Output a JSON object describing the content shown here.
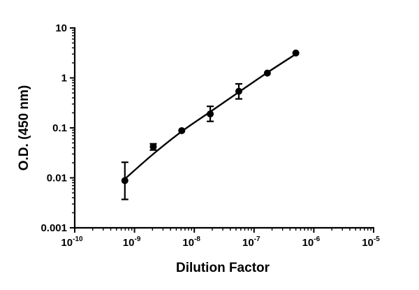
{
  "chart_data": {
    "type": "scatter",
    "xlabel": "Dilution Factor",
    "ylabel": "O.D. (450 nm)",
    "x_scale": "log",
    "y_scale": "log",
    "xlim": [
      1e-10,
      1e-05
    ],
    "ylim": [
      0.001,
      10
    ],
    "x_ticks": [
      {
        "base": "10",
        "exp": "-10"
      },
      {
        "base": "10",
        "exp": "-9"
      },
      {
        "base": "10",
        "exp": "-8"
      },
      {
        "base": "10",
        "exp": "-7"
      },
      {
        "base": "10",
        "exp": "-6"
      },
      {
        "base": "10",
        "exp": "-5"
      }
    ],
    "y_ticks": [
      "0.001",
      "0.01",
      "0.1",
      "1",
      "10"
    ],
    "grid": false,
    "series": [
      {
        "points": [
          {
            "x": 6.9e-10,
            "y": 0.0088,
            "err_low": 0.0037,
            "err_high": 0.0205
          },
          {
            "x": 2.06e-09,
            "y": 0.042,
            "err_low": 0.036,
            "err_high": 0.048
          },
          {
            "x": 6.17e-09,
            "y": 0.088,
            "err_low": 0.088,
            "err_high": 0.088
          },
          {
            "x": 1.85e-08,
            "y": 0.19,
            "err_low": 0.135,
            "err_high": 0.27
          },
          {
            "x": 5.56e-08,
            "y": 0.54,
            "err_low": 0.38,
            "err_high": 0.76
          },
          {
            "x": 1.67e-07,
            "y": 1.25,
            "err_low": 1.25,
            "err_high": 1.25
          },
          {
            "x": 5e-07,
            "y": 3.15,
            "err_low": 3.15,
            "err_high": 3.15
          }
        ],
        "fit_curve": {
          "x": [
            6.9e-10,
            2.06e-09,
            6.17e-09,
            1.85e-08,
            5.56e-08,
            1.67e-07,
            5e-07
          ],
          "y": [
            0.0095,
            0.03,
            0.085,
            0.21,
            0.52,
            1.28,
            3.0
          ]
        }
      }
    ]
  }
}
